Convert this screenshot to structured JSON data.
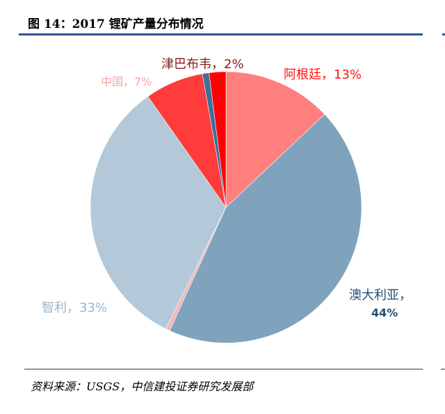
{
  "title": "图 14：2017 锂矿产量分布情况",
  "source": "资料来源：USGS，中信建投证券研究发展部",
  "chart_data": {
    "type": "pie",
    "title": "2017 锂矿产量分布情况",
    "slices": [
      {
        "name": "阿根廷",
        "value": 13,
        "label": "阿根廷，13%",
        "color": "#ff7f7f",
        "label_color": "#ff1010"
      },
      {
        "name": "澳大利亚",
        "value": 44,
        "label": "澳大利亚，",
        "label2": "44%",
        "color": "#7fa3bd",
        "label_color": "#1f4e79"
      },
      {
        "name": "",
        "value": 0.5,
        "color": "#f4b6b6"
      },
      {
        "name": "智利",
        "value": 33,
        "label": "智利，33%",
        "color": "#b3c9d9",
        "label_color": "#9bb5cc"
      },
      {
        "name": "中国",
        "value": 7,
        "label": "中国，7%",
        "color": "#ff3b3b",
        "label_color": "#f4a0a0"
      },
      {
        "name": "",
        "value": 0.8,
        "color": "#3f6f9a"
      },
      {
        "name": "津巴布韦",
        "value": 2,
        "label": "津巴布韦，2%",
        "color": "#ff0000",
        "label_color": "#8b1a1a"
      }
    ]
  }
}
